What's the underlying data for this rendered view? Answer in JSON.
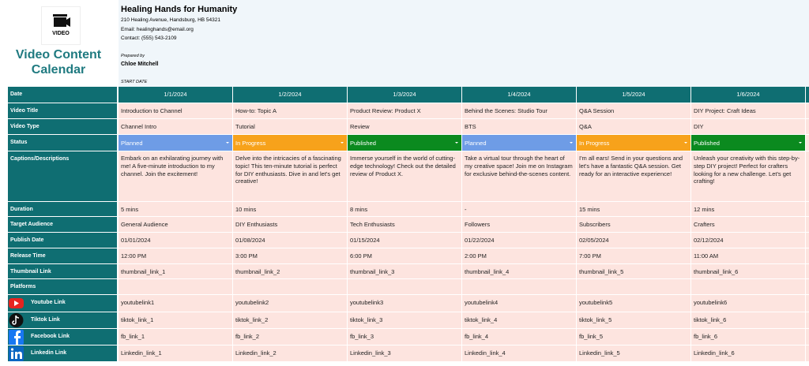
{
  "header": {
    "logo_text": "VIDEO",
    "title": "Video Content Calendar",
    "company": "Healing Hands for Humanity",
    "address": "210 Healing Avenue, Handsburg, HB 54321",
    "email": "Email: healinghands@email.org",
    "contact": "Contact: (555) 543-2109",
    "prepared_by_label": "Prepared by",
    "prepared_by": "Chloe Mitchell",
    "start_date_label": "START DATE"
  },
  "status_colors": {
    "Planned": "#6e9ce6",
    "In Progress": "#f7a21b",
    "Published": "#0b8a1f"
  },
  "table": {
    "rows": [
      {
        "label": "Date",
        "cells": [
          "1/1/2024",
          "1/2/2024",
          "1/3/2024",
          "1/4/2024",
          "1/5/2024",
          "1/6/2024"
        ]
      },
      {
        "label": "Video Title",
        "cells": [
          "Introduction to Channel",
          "How-to: Topic A",
          "Product Review: Product X",
          "Behind the Scenes: Studio Tour",
          "Q&A Session",
          "DIY Project: Craft Ideas"
        ]
      },
      {
        "label": "Video Type",
        "cells": [
          "Channel Intro",
          "Tutorial",
          "Review",
          "BTS",
          "Q&A",
          "DIY"
        ]
      },
      {
        "label": "Status",
        "cells": [
          "Planned",
          "In Progress",
          "Published",
          "Planned",
          "In Progress",
          "Published"
        ]
      },
      {
        "label": "Captions/Descriptions",
        "cells": [
          "Embark on an exhilarating journey with me! A five-minute introduction to my channel. Join the excitement!",
          "Delve into the intricacies of a fascinating topic! This ten-minute tutorial is perfect for DIY enthusiasts. Dive in and let's get creative!",
          "Immerse yourself in the world of cutting-edge technology! Check out the detailed review of Product X.",
          "Take a virtual tour through the heart of my creative space! Join me on Instagram for exclusive behind-the-scenes content.",
          "I'm all ears! Send in your questions and let's have a fantastic Q&A session. Get ready for an interactive experience!",
          "Unleash your creativity with this step-by-step DIY project! Perfect for crafters looking for a new challenge. Let's get crafting!"
        ]
      },
      {
        "label": "Duration",
        "cells": [
          "5 mins",
          "10 mins",
          "8 mins",
          "-",
          "15 mins",
          "12 mins"
        ]
      },
      {
        "label": "Target Audience",
        "cells": [
          "General Audience",
          "DIY Enthusiasts",
          "Tech Enthusiasts",
          "Followers",
          "Subscribers",
          "Crafters"
        ]
      },
      {
        "label": "Publish Date",
        "cells": [
          "01/01/2024",
          "01/08/2024",
          "01/15/2024",
          "01/22/2024",
          "02/05/2024",
          "02/12/2024"
        ]
      },
      {
        "label": "Release Time",
        "cells": [
          "12:00 PM",
          "3:00 PM",
          "6:00 PM",
          "2:00 PM",
          "7:00 PM",
          "11:00 AM"
        ]
      },
      {
        "label": "Thumbnail Link",
        "cells": [
          "thumbnail_link_1",
          "thumbnail_link_2",
          "thumbnail_link_3",
          "thumbnail_link_4",
          "thumbnail_link_5",
          "thumbnail_link_6"
        ]
      },
      {
        "label": "Platforms"
      },
      {
        "label": "Youtube Link",
        "cells": [
          "youtubelink1",
          "youtubelink2",
          "youtubelink3",
          "youtubelink4",
          "youtubelink5",
          "youtubelink6"
        ]
      },
      {
        "label": "Tiktok Link",
        "cells": [
          "tiktok_link_1",
          "tiktok_link_2",
          "tiktok_link_3",
          "tiktok_link_4",
          "tiktok_link_5",
          "tiktok_link_6"
        ]
      },
      {
        "label": "Facebook Link",
        "cells": [
          "fb_link_1",
          "fb_link_2",
          "fb_link_3",
          "fb_link_4",
          "fb_link_5",
          "fb_link_6"
        ]
      },
      {
        "label": "Linkedin Link",
        "cells": [
          "Linkedin_link_1",
          "Linkedin_link_2",
          "Linkedin_link_3",
          "Linkedin_link_4",
          "Linkedin_link_5",
          "Linkedin_link_6"
        ]
      }
    ]
  }
}
